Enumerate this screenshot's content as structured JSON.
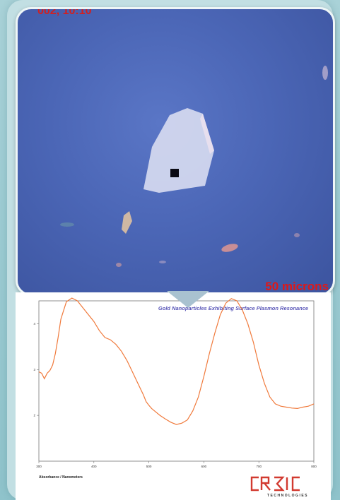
{
  "micrograph": {
    "timestamp_fragment": "002, 10:10",
    "scale_label": "50 microns"
  },
  "logo": {
    "name": "CRAIC",
    "subtitle": "TECHNOLOGIES"
  },
  "colors": {
    "curve": "#f07a3c",
    "scale_text": "#e01818",
    "title_text": "#5a57b8"
  },
  "chart_data": {
    "type": "line",
    "title": "Gold Nanoparticles Exhibiting Surface Plasmon Resonance",
    "xlabel": "Absorbance / Nanometers",
    "ylabel": "",
    "xlim": [
      300,
      800
    ],
    "ylim": [
      1,
      4.5
    ],
    "x_ticks": [
      "300",
      "400",
      "500",
      "600",
      "700",
      "800"
    ],
    "y_ticks": [
      "4",
      "3",
      "2"
    ],
    "grid": false,
    "series": [
      {
        "x": [
          300,
          305,
          310,
          315,
          320,
          325,
          330,
          335,
          340,
          350,
          360,
          370,
          380,
          390,
          400,
          410,
          420,
          430,
          440,
          450,
          460,
          470,
          480,
          490,
          495,
          500,
          505,
          510,
          520,
          530,
          540,
          550,
          560,
          570,
          580,
          590,
          600,
          610,
          620,
          630,
          640,
          650,
          660,
          670,
          680,
          690,
          700,
          710,
          720,
          730,
          740,
          750,
          760,
          770,
          780,
          790,
          800
        ],
        "y": [
          2.95,
          2.92,
          2.8,
          2.92,
          2.98,
          3.1,
          3.35,
          3.7,
          4.1,
          4.48,
          4.56,
          4.5,
          4.35,
          4.2,
          4.05,
          3.85,
          3.7,
          3.65,
          3.55,
          3.4,
          3.2,
          2.95,
          2.7,
          2.45,
          2.3,
          2.22,
          2.15,
          2.1,
          2.0,
          1.92,
          1.85,
          1.8,
          1.83,
          1.9,
          2.1,
          2.4,
          2.85,
          3.35,
          3.8,
          4.2,
          4.45,
          4.55,
          4.5,
          4.3,
          4.0,
          3.6,
          3.1,
          2.7,
          2.4,
          2.25,
          2.2,
          2.18,
          2.16,
          2.15,
          2.18,
          2.2,
          2.25
        ]
      }
    ]
  }
}
